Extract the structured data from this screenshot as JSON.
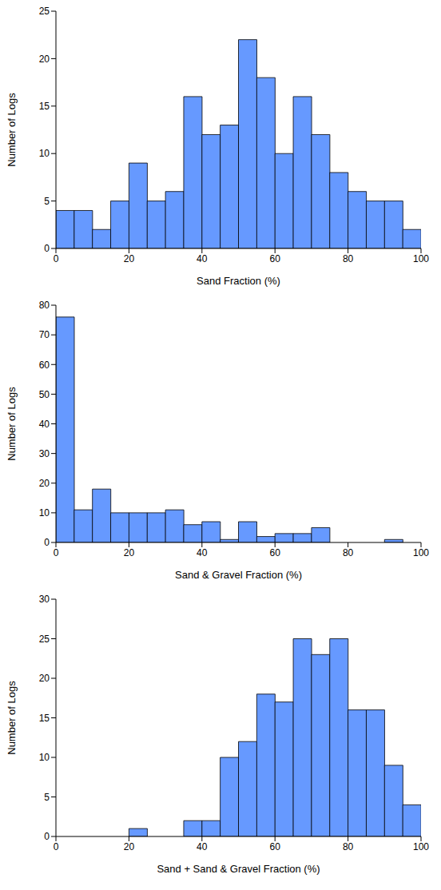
{
  "chart_data": [
    {
      "type": "histogram",
      "x_label": "Sand Fraction (%)",
      "y_label": "Number of Logs",
      "bins": [
        0,
        5,
        10,
        15,
        20,
        25,
        30,
        35,
        40,
        45,
        50,
        55,
        60,
        65,
        70,
        75,
        80,
        85,
        90,
        95,
        100
      ],
      "values": [
        4,
        4,
        2,
        5,
        9,
        5,
        6,
        16,
        12,
        13,
        22,
        18,
        10,
        16,
        12,
        8,
        6,
        5,
        5,
        2
      ],
      "color": "#6699ff",
      "xlim": [
        0,
        100
      ],
      "xticks": [
        0,
        20,
        40,
        60,
        80,
        100
      ],
      "ylim": [
        0,
        25
      ],
      "yticks": [
        0,
        5,
        10,
        15,
        20,
        25
      ],
      "grid": false
    },
    {
      "type": "histogram",
      "x_label": "Sand & Gravel Fraction (%)",
      "y_label": "Number of Logs",
      "bins": [
        0,
        5,
        10,
        15,
        20,
        25,
        30,
        35,
        40,
        45,
        50,
        55,
        60,
        65,
        70,
        75,
        80,
        85,
        90,
        95,
        100
      ],
      "values": [
        76,
        11,
        18,
        10,
        10,
        10,
        11,
        6,
        7,
        1,
        7,
        2,
        3,
        3,
        5,
        0,
        0,
        0,
        1,
        0
      ],
      "color": "#6699ff",
      "xlim": [
        0,
        100
      ],
      "xticks": [
        0,
        20,
        40,
        60,
        80,
        100
      ],
      "ylim": [
        0,
        80
      ],
      "yticks": [
        0,
        10,
        20,
        30,
        40,
        50,
        60,
        70,
        80
      ],
      "grid": false
    },
    {
      "type": "histogram",
      "x_label": "Sand + Sand & Gravel Fraction (%)",
      "y_label": "Number of Logs",
      "bins": [
        0,
        5,
        10,
        15,
        20,
        25,
        30,
        35,
        40,
        45,
        50,
        55,
        60,
        65,
        70,
        75,
        80,
        85,
        90,
        95,
        100
      ],
      "values": [
        0,
        0,
        0,
        0,
        1,
        0,
        0,
        2,
        2,
        10,
        12,
        18,
        17,
        25,
        23,
        25,
        16,
        16,
        9,
        4
      ],
      "color": "#6699ff",
      "xlim": [
        0,
        100
      ],
      "xticks": [
        0,
        20,
        40,
        60,
        80,
        100
      ],
      "ylim": [
        0,
        30
      ],
      "yticks": [
        0,
        5,
        10,
        15,
        20,
        25,
        30
      ],
      "grid": false
    }
  ]
}
